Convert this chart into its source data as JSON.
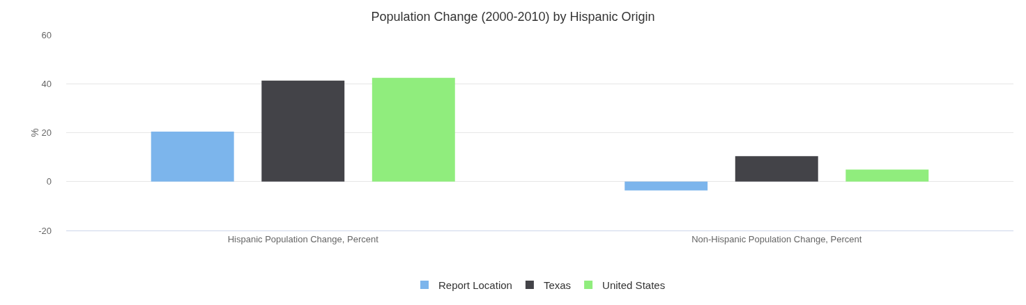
{
  "chart_data": {
    "type": "bar",
    "title": "Population Change (2000-2010) by Hispanic Origin",
    "ylabel": "%",
    "categories": [
      "Hispanic Population Change, Percent",
      "Non-Hispanic Population Change, Percent"
    ],
    "series": [
      {
        "name": "Report Location",
        "color": "#7cb5ec",
        "values": [
          20.4,
          -3.6
        ]
      },
      {
        "name": "Texas",
        "color": "#434348",
        "values": [
          41.3,
          10.4
        ]
      },
      {
        "name": "United States",
        "color": "#90ed7d",
        "values": [
          42.4,
          4.9
        ]
      }
    ],
    "ylim": [
      -20,
      60
    ],
    "yticks": [
      -20,
      0,
      20,
      40,
      60
    ],
    "grid": "y",
    "legend": "bottom"
  }
}
